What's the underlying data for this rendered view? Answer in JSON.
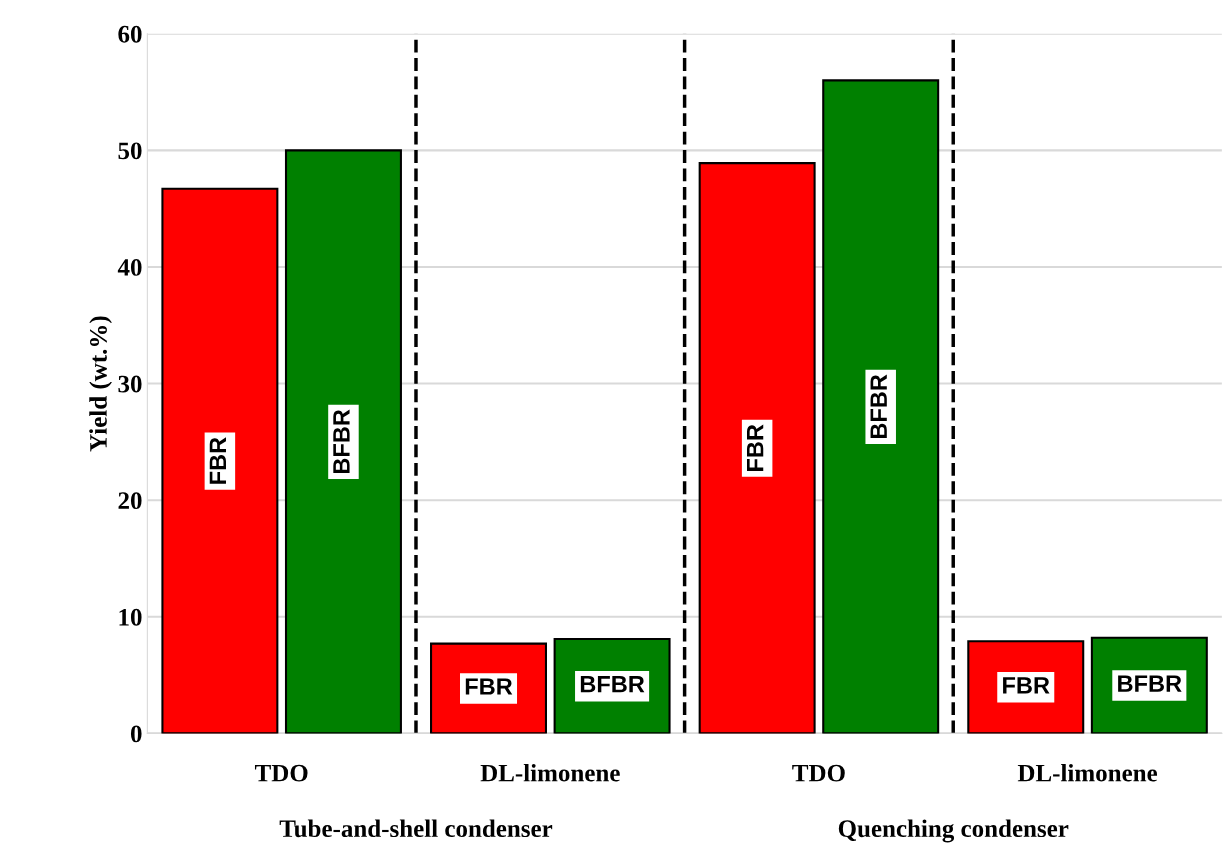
{
  "chart_data": {
    "type": "bar",
    "ylabel": "Yield (wt.%)",
    "categories": [
      "TDO",
      "DL-limonene",
      "TDO",
      "DL-limonene"
    ],
    "series": [
      {
        "name": "FBR",
        "color": "#ff0000",
        "values": [
          46.7,
          7.7,
          48.9,
          7.9
        ]
      },
      {
        "name": "BFBR",
        "color": "#008000",
        "values": [
          50.0,
          8.1,
          56.0,
          8.2
        ]
      }
    ],
    "ylim": [
      0,
      60
    ],
    "yticks": [
      0,
      10,
      20,
      30,
      40,
      50,
      60
    ],
    "grid": "y",
    "legend": false,
    "annotations": [
      "Tube-and-shell condenser",
      "Quenching condenser"
    ]
  }
}
